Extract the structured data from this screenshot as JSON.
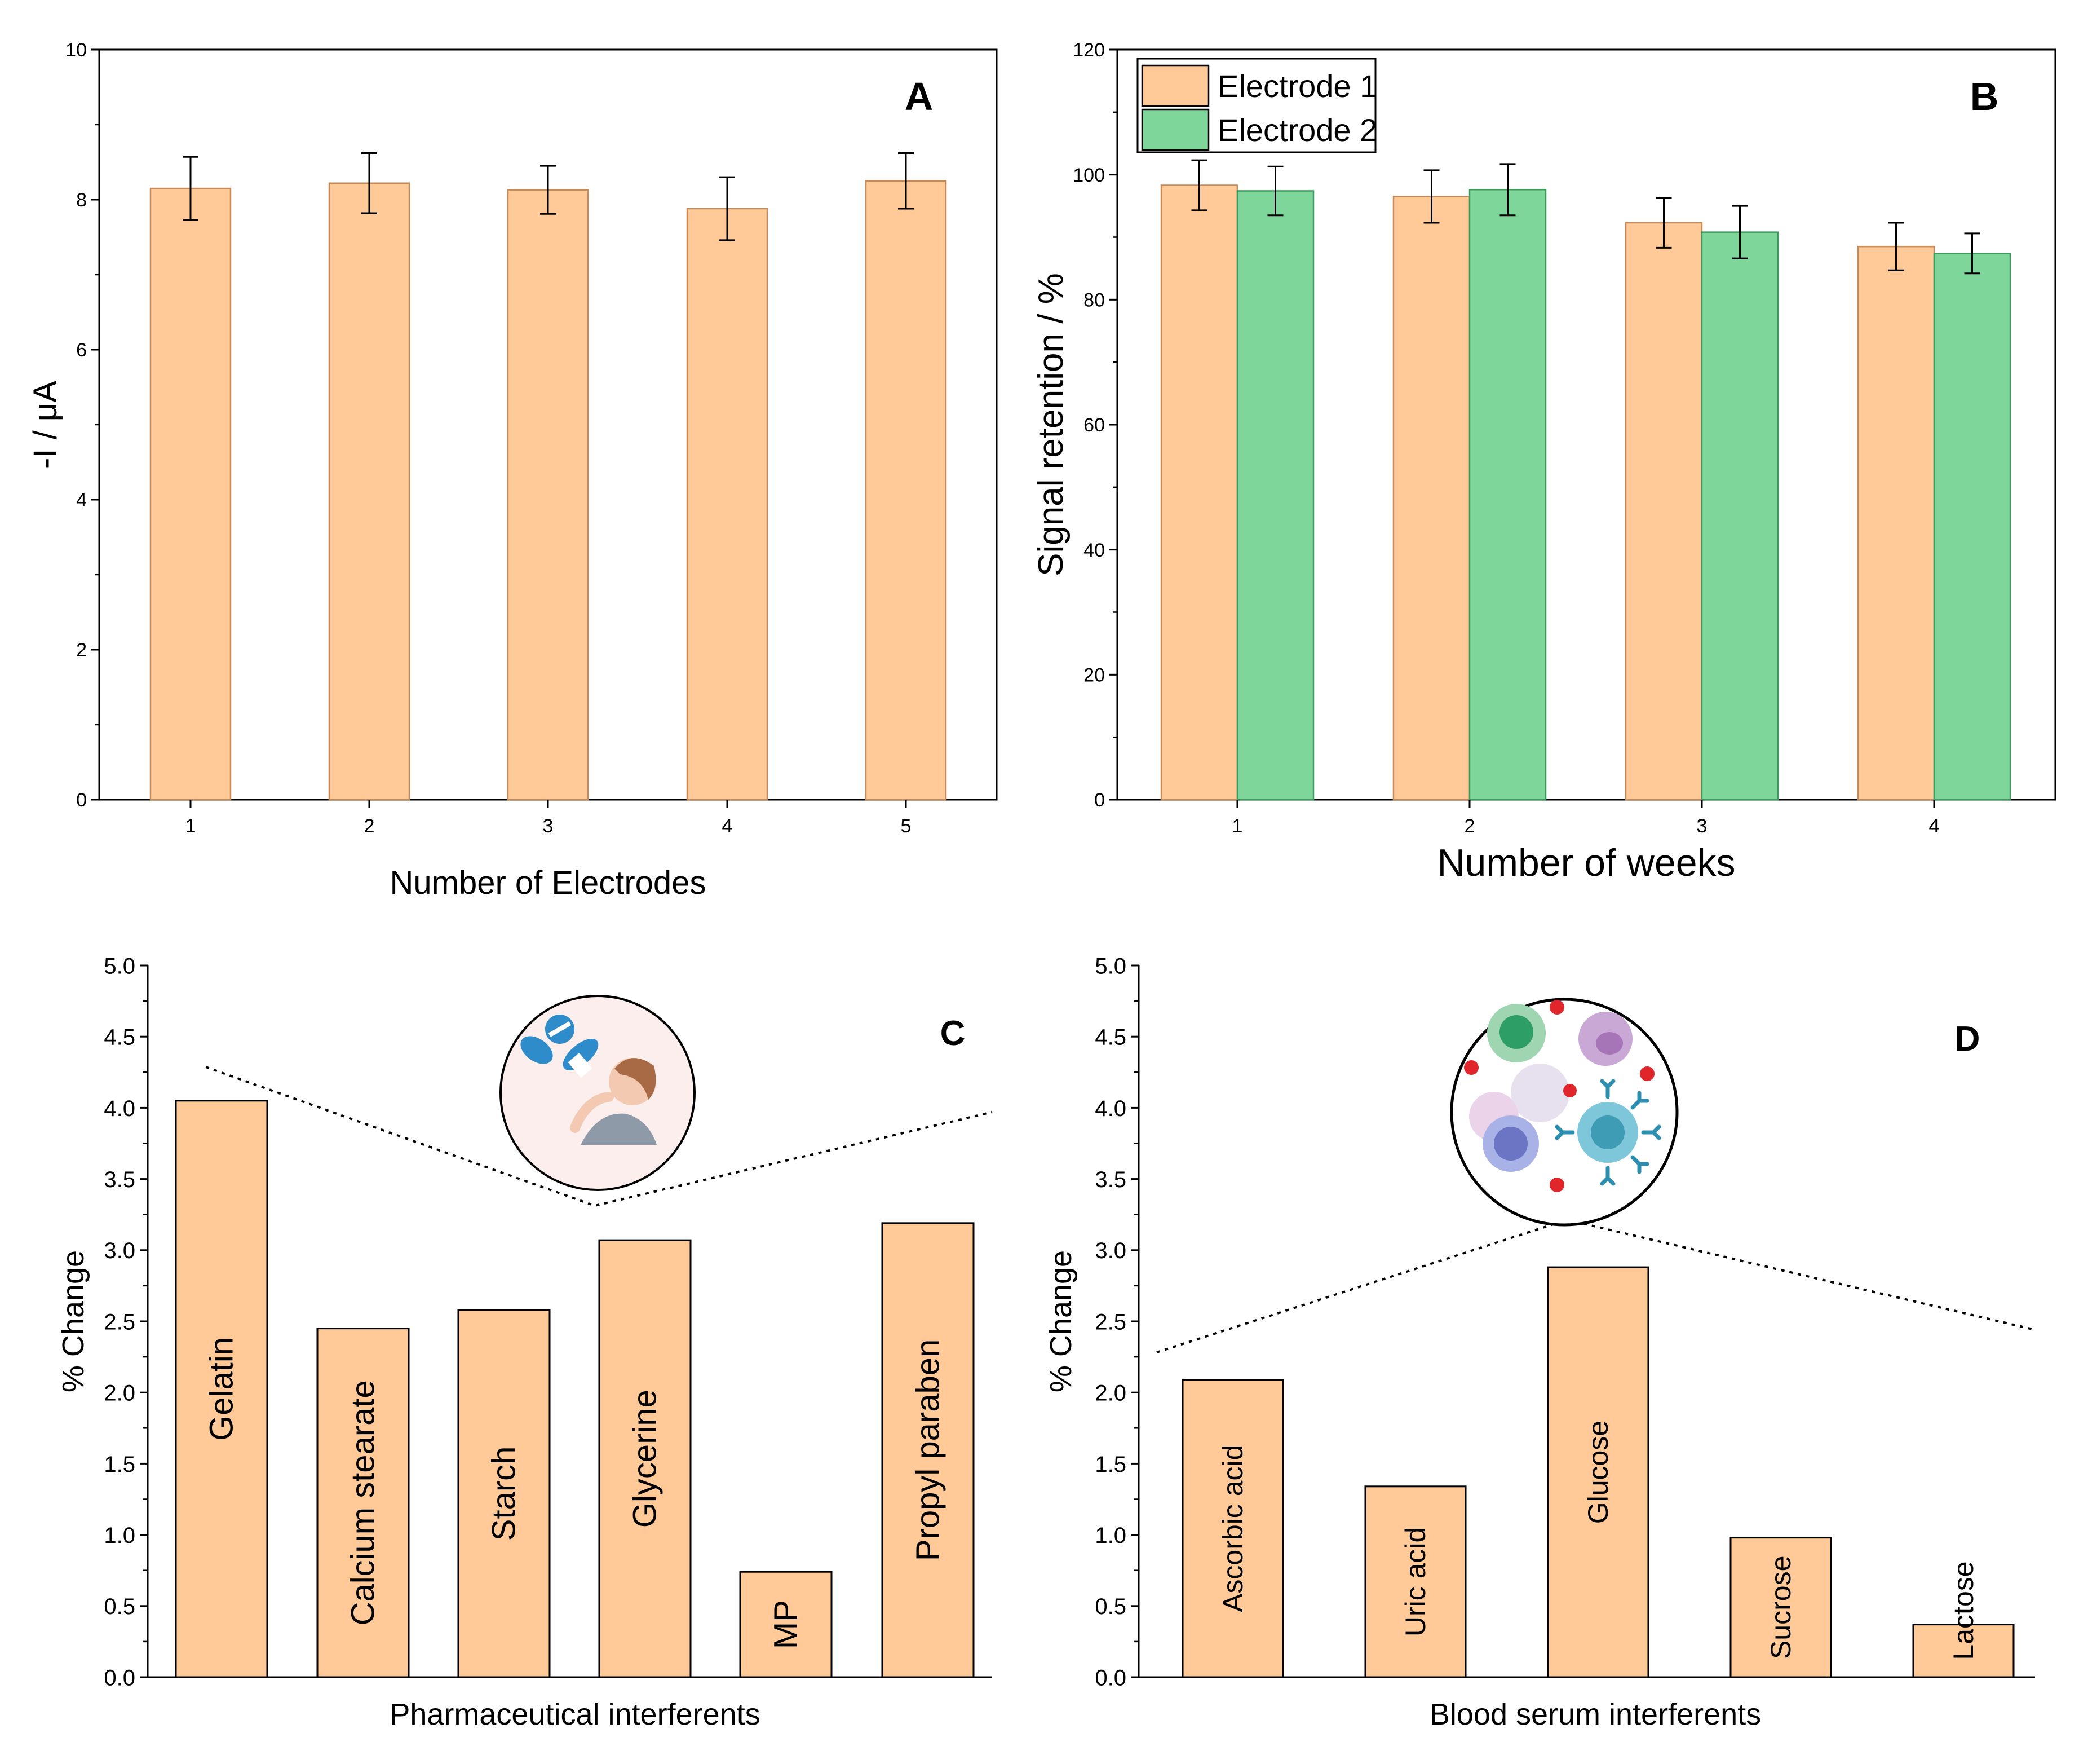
{
  "colors": {
    "bar_orange": "#FFC998",
    "bar_green": "#7FD69B",
    "edge": "#C48A5A",
    "axis": "#000000"
  },
  "chart_data": [
    {
      "id": "A",
      "type": "bar",
      "panel_label": "A",
      "title": "",
      "xlabel": "Number of Electrodes",
      "ylabel": "-I /  μA",
      "categories": [
        "1",
        "2",
        "3",
        "4",
        "5"
      ],
      "ylim": [
        0,
        10
      ],
      "yticks": [
        "0",
        "2",
        "4",
        "6",
        "8",
        "10"
      ],
      "series": [
        {
          "name": "Electrodes",
          "values": [
            8.15,
            8.22,
            8.13,
            7.88,
            8.25
          ],
          "errors": [
            0.42,
            0.4,
            0.32,
            0.42,
            0.37
          ]
        }
      ]
    },
    {
      "id": "B",
      "type": "bar",
      "panel_label": "B",
      "title": "",
      "xlabel": "Number of weeks",
      "ylabel": "Signal retention / %",
      "categories": [
        "1",
        "2",
        "3",
        "4"
      ],
      "ylim": [
        0,
        120
      ],
      "yticks": [
        "0",
        "20",
        "40",
        "60",
        "80",
        "100",
        "120"
      ],
      "legend": {
        "placement": "top-left",
        "entries": [
          "Electrode 1",
          "Electrode 2"
        ]
      },
      "series": [
        {
          "name": "Electrode 1",
          "values": [
            98.3,
            96.5,
            92.3,
            88.5
          ],
          "errors": [
            4.0,
            4.2,
            4.0,
            3.8
          ]
        },
        {
          "name": "Electrode 2",
          "values": [
            97.4,
            97.6,
            90.8,
            87.4
          ],
          "errors": [
            3.9,
            4.1,
            4.2,
            3.2
          ]
        }
      ]
    },
    {
      "id": "C",
      "type": "bar",
      "panel_label": "C",
      "title": "",
      "xlabel": "Pharmaceutical interferents",
      "ylabel": "% Change",
      "categories": [
        "Gelatin",
        "Calcium stearate",
        "Starch",
        "Glycerine",
        "MP",
        "Propyl paraben"
      ],
      "ylim": [
        0,
        5
      ],
      "yticks": [
        "0.0",
        "0.5",
        "1.0",
        "1.5",
        "2.0",
        "2.5",
        "3.0",
        "3.5",
        "4.0",
        "4.5",
        "5.0"
      ],
      "values": [
        4.05,
        2.45,
        2.58,
        3.07,
        0.74,
        3.19
      ],
      "annotation": "dotted V-shaped line pointing to a circular illustration of a person taking pills"
    },
    {
      "id": "D",
      "type": "bar",
      "panel_label": "D",
      "title": "",
      "xlabel": "Blood serum interferents",
      "ylabel": "% Change",
      "categories": [
        "Ascorbic acid",
        "Uric acid",
        "Glucose",
        "Sucrose",
        "Lactose"
      ],
      "ylim": [
        0,
        5
      ],
      "yticks": [
        "0.0",
        "0.5",
        "1.0",
        "1.5",
        "2.0",
        "2.5",
        "3.0",
        "3.5",
        "4.0",
        "4.5",
        "5.0"
      ],
      "values": [
        2.09,
        1.34,
        2.88,
        0.98,
        0.37
      ],
      "annotation": "dotted inverted-V line pointing to a circular illustration of blood cells"
    }
  ]
}
